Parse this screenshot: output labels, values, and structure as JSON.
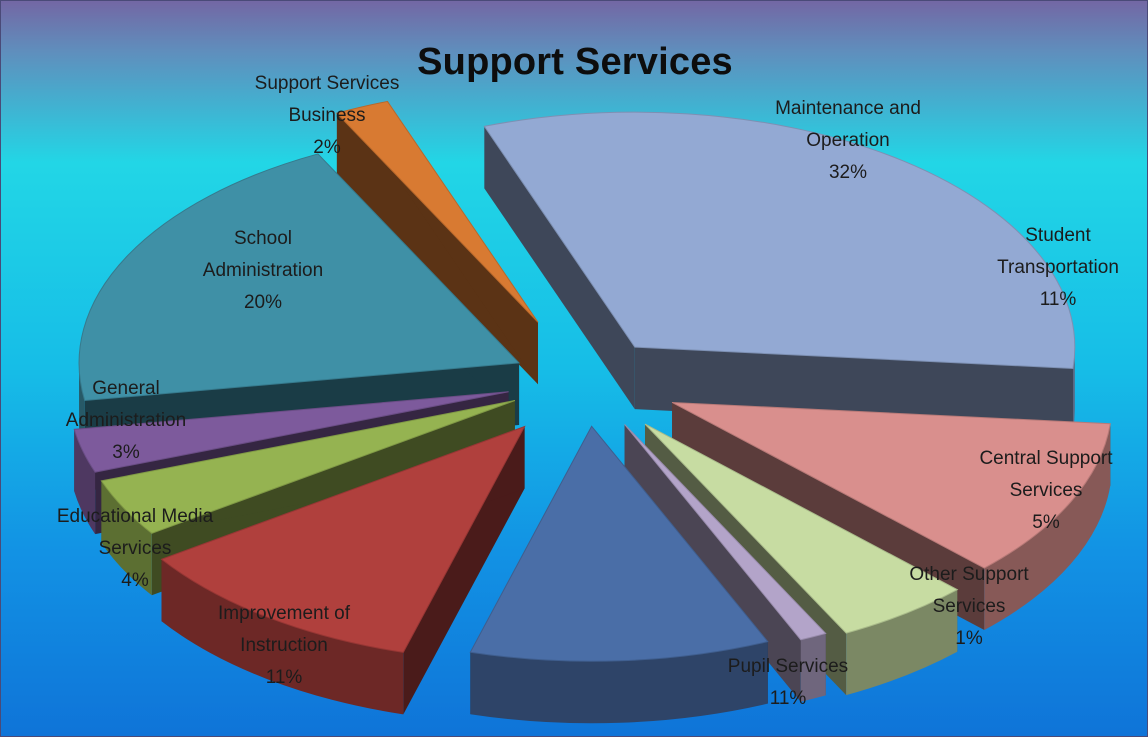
{
  "chart_data": {
    "type": "pie",
    "title": "Support Services",
    "slices": [
      {
        "label_lines": [
          "Maintenance and",
          "Operation"
        ],
        "percent_label": "32%",
        "value": 32,
        "color": "#93a9d3"
      },
      {
        "label_lines": [
          "Student",
          "Transportation"
        ],
        "percent_label": "11%",
        "value": 11,
        "color": "#d98f8d"
      },
      {
        "label_lines": [
          "Central Support",
          "Services"
        ],
        "percent_label": "5%",
        "value": 5,
        "color": "#c7dca2"
      },
      {
        "label_lines": [
          "Other Support",
          "Services"
        ],
        "percent_label": "1%",
        "value": 1,
        "color": "#b3a4c9"
      },
      {
        "label_lines": [
          "Pupil Services"
        ],
        "percent_label": "11%",
        "value": 11,
        "color": "#4a6ea7"
      },
      {
        "label_lines": [
          "Improvement of",
          "Instruction"
        ],
        "percent_label": "11%",
        "value": 11,
        "color": "#b0403d"
      },
      {
        "label_lines": [
          "Educational Media",
          "Services"
        ],
        "percent_label": "4%",
        "value": 4,
        "color": "#95b351"
      },
      {
        "label_lines": [
          "General",
          "Administration"
        ],
        "percent_label": "3%",
        "value": 3,
        "color": "#7d5a9c"
      },
      {
        "label_lines": [
          "School",
          "Administration"
        ],
        "percent_label": "20%",
        "value": 20,
        "color": "#3f90a6"
      },
      {
        "label_lines": [
          "Support Services",
          "Business"
        ],
        "percent_label": "2%",
        "value": 2,
        "color": "#d87a32"
      }
    ],
    "legend": "none",
    "style": "3d-exploded-pie"
  }
}
